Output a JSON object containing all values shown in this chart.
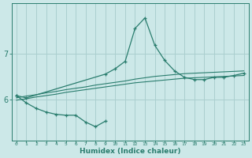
{
  "xlabel": "Humidex (Indice chaleur)",
  "x_values": [
    0,
    1,
    2,
    3,
    4,
    5,
    6,
    7,
    8,
    9,
    10,
    11,
    12,
    13,
    14,
    15,
    16,
    17,
    18,
    19,
    20,
    21,
    22,
    23
  ],
  "line_max": [
    6.08,
    6.03,
    null,
    null,
    null,
    null,
    null,
    null,
    null,
    6.55,
    6.67,
    6.83,
    7.55,
    7.78,
    7.18,
    6.85,
    6.62,
    6.48,
    6.43,
    6.43,
    6.48,
    6.48,
    6.52,
    6.57
  ],
  "line_min": [
    6.08,
    5.92,
    5.8,
    5.72,
    5.67,
    5.65,
    5.65,
    5.5,
    5.4,
    5.52,
    null,
    null,
    null,
    null,
    null,
    null,
    null,
    null,
    null,
    null,
    null,
    null,
    null,
    null
  ],
  "line_trend1": [
    6.03,
    6.07,
    6.1,
    6.14,
    6.17,
    6.21,
    6.24,
    6.27,
    6.31,
    6.34,
    6.37,
    6.4,
    6.44,
    6.47,
    6.5,
    6.52,
    6.54,
    6.56,
    6.57,
    6.58,
    6.59,
    6.6,
    6.61,
    6.62
  ],
  "line_trend2": [
    5.98,
    6.01,
    6.05,
    6.08,
    6.11,
    6.15,
    6.18,
    6.21,
    6.24,
    6.27,
    6.3,
    6.33,
    6.36,
    6.38,
    6.4,
    6.42,
    6.44,
    6.46,
    6.47,
    6.48,
    6.49,
    6.5,
    6.51,
    6.52
  ],
  "bg_color": "#cce8e8",
  "grid_color": "#aacfcf",
  "line_color": "#2a7d6e",
  "yticks": [
    6,
    7
  ],
  "ylim": [
    5.1,
    8.1
  ],
  "xlim": [
    -0.5,
    23.5
  ]
}
